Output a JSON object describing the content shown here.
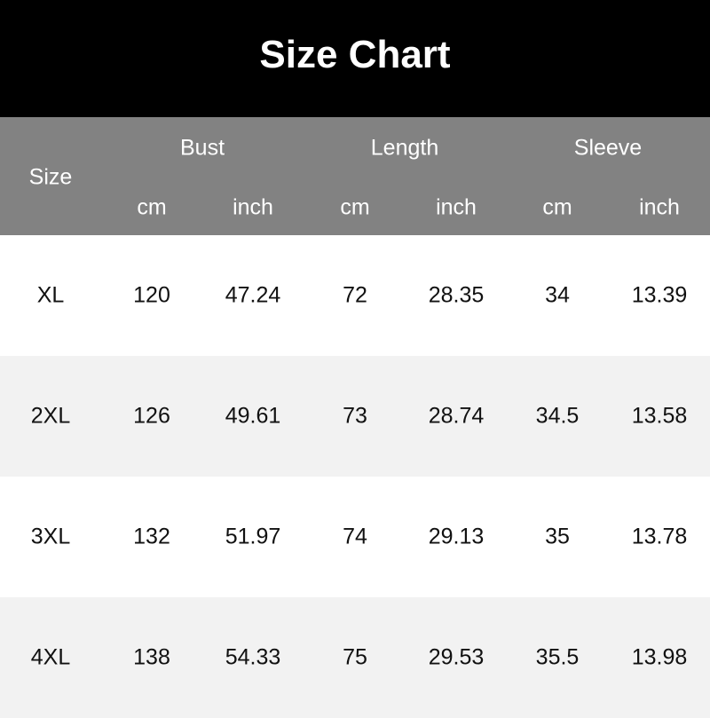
{
  "title": "Size Chart",
  "header": {
    "size": "Size",
    "groups": [
      "Bust",
      "Length",
      "Sleeve"
    ],
    "units": [
      "cm",
      "inch",
      "cm",
      "inch",
      "cm",
      "inch"
    ]
  },
  "rows": [
    [
      "XL",
      "120",
      "47.24",
      "72",
      "28.35",
      "34",
      "13.39"
    ],
    [
      "2XL",
      "126",
      "49.61",
      "73",
      "28.74",
      "34.5",
      "13.58"
    ],
    [
      "3XL",
      "132",
      "51.97",
      "74",
      "29.13",
      "35",
      "13.78"
    ],
    [
      "4XL",
      "138",
      "54.33",
      "75",
      "29.53",
      "35.5",
      "13.98"
    ]
  ],
  "colors": {
    "title_bg": "#000000",
    "header_bg": "#828282",
    "alt_row_bg": "#f2f2f2"
  }
}
